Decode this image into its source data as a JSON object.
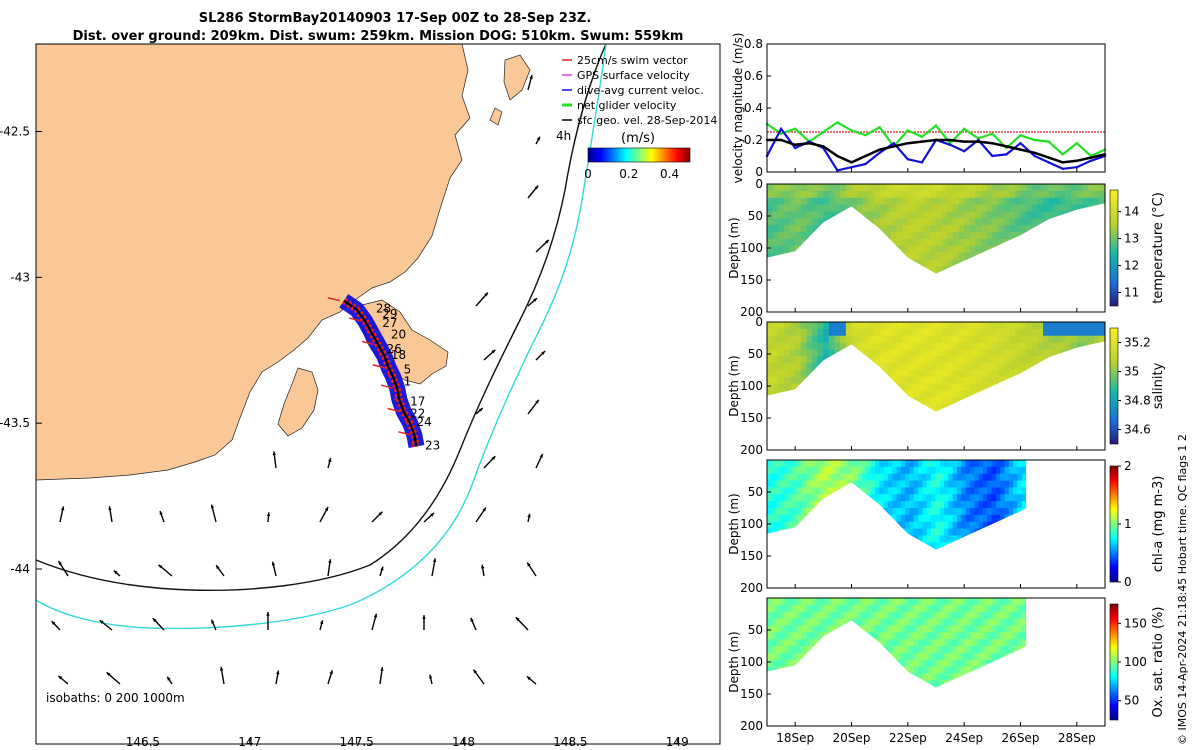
{
  "title": {
    "line1": "SL286 StormBay20140903 17-Sep 00Z to 28-Sep 23Z.",
    "line2": "Dist. over ground: 209km. Dist. swum: 259km. Mission DOG: 510km. Swum: 559km"
  },
  "copyright": "© IMOS 14-Apr-2024 21:18:45 Hobart time. QC flags 1  2",
  "colors": {
    "land": "#f9c896",
    "track": "#e8201c",
    "dive_avg": "#1010d8",
    "net": "#22e022",
    "isobath_200": "#111111",
    "isobath_1000": "#33d8d8",
    "wind_line": "#e04040"
  },
  "chart_data": [
    {
      "id": "map",
      "type": "scatter",
      "xlim": [
        146.0,
        149.2
      ],
      "ylim": [
        -44.6,
        -42.2
      ],
      "xticks": [
        "146.5",
        "147",
        "147.5",
        "148",
        "148.5",
        "149"
      ],
      "xtick_values": [
        146.5,
        147,
        147.5,
        148,
        148.5,
        149
      ],
      "yticks": [
        "-42.5",
        "-43",
        "-43.5",
        "-44"
      ],
      "ytick_values": [
        -42.5,
        -43,
        -43.5,
        -44
      ],
      "legend": {
        "placement": "top-right",
        "entries": [
          {
            "label": "25cm/s swim vector",
            "color": "#e8201c"
          },
          {
            "label": "GPS surface velocity",
            "color": "#e040e0"
          },
          {
            "label": "dive-avg current veloc.",
            "color": "#1010d8"
          },
          {
            "label": "net glider velocity",
            "color": "#22e022"
          },
          {
            "label": "sfc geo. vel. 28-Sep-2014",
            "color": "#000000"
          }
        ],
        "interval_label": "4h"
      },
      "colorbar": {
        "label": "(m/s)",
        "ticks": [
          "0",
          "0.2",
          "0.4"
        ],
        "tick_values": [
          0,
          0.2,
          0.4
        ],
        "range": [
          0,
          0.5
        ]
      },
      "isobath_label": "isobaths: 0   200   1000m",
      "day_labels": [
        {
          "text": "28",
          "lon": 147.59,
          "lat": -43.12
        },
        {
          "text": "29",
          "lon": 147.62,
          "lat": -43.14
        },
        {
          "text": "27",
          "lon": 147.62,
          "lat": -43.17
        },
        {
          "text": "20",
          "lon": 147.66,
          "lat": -43.21
        },
        {
          "text": "26",
          "lon": 147.64,
          "lat": -43.26
        },
        {
          "text": "18",
          "lon": 147.66,
          "lat": -43.28
        },
        {
          "text": "5",
          "lon": 147.72,
          "lat": -43.33
        },
        {
          "text": "1",
          "lon": 147.72,
          "lat": -43.37
        },
        {
          "text": "17",
          "lon": 147.75,
          "lat": -43.44
        },
        {
          "text": "22",
          "lon": 147.75,
          "lat": -43.48
        },
        {
          "text": "24",
          "lon": 147.78,
          "lat": -43.51
        },
        {
          "text": "23",
          "lon": 147.82,
          "lat": -43.59
        }
      ],
      "track": [
        [
          147.44,
          -43.08
        ],
        [
          147.5,
          -43.11
        ],
        [
          147.54,
          -43.15
        ],
        [
          147.57,
          -43.19
        ],
        [
          147.6,
          -43.23
        ],
        [
          147.63,
          -43.27
        ],
        [
          147.65,
          -43.31
        ],
        [
          147.67,
          -43.34
        ],
        [
          147.69,
          -43.38
        ],
        [
          147.7,
          -43.42
        ],
        [
          147.72,
          -43.46
        ],
        [
          147.75,
          -43.5
        ],
        [
          147.77,
          -43.54
        ],
        [
          147.78,
          -43.58
        ]
      ]
    },
    {
      "id": "velocity",
      "type": "line",
      "x_unit": "day of September 2014",
      "xlim": [
        17,
        29
      ],
      "ylim": [
        0,
        0.8
      ],
      "yticks": [
        "0",
        "0.2",
        "0.4",
        "0.6",
        "0.8"
      ],
      "ytick_values": [
        0,
        0.2,
        0.4,
        0.6,
        0.8
      ],
      "ylabel": "velocity magnitude (m/s)",
      "reference_line": 0.25,
      "series": [
        {
          "color": "#22e022",
          "x": [
            17,
            17.5,
            18,
            18.5,
            19,
            19.5,
            20,
            20.5,
            21,
            21.5,
            22,
            22.5,
            23,
            23.5,
            24,
            24.5,
            25,
            25.5,
            26,
            26.5,
            27,
            27.5,
            28,
            28.5,
            29
          ],
          "values": [
            0.3,
            0.24,
            0.27,
            0.19,
            0.25,
            0.31,
            0.26,
            0.23,
            0.28,
            0.16,
            0.26,
            0.22,
            0.29,
            0.18,
            0.27,
            0.21,
            0.24,
            0.15,
            0.23,
            0.2,
            0.19,
            0.11,
            0.18,
            0.1,
            0.14
          ]
        },
        {
          "color": "#1010d8",
          "x": [
            17,
            17.5,
            18,
            18.5,
            19,
            19.5,
            20,
            20.5,
            21,
            21.5,
            22,
            22.5,
            23,
            23.5,
            24,
            24.5,
            25,
            25.5,
            26,
            26.5,
            27,
            27.5,
            28,
            28.5,
            29
          ],
          "values": [
            0.1,
            0.27,
            0.15,
            0.19,
            0.15,
            0.01,
            0.03,
            0.05,
            0.12,
            0.18,
            0.08,
            0.06,
            0.2,
            0.17,
            0.13,
            0.2,
            0.1,
            0.11,
            0.18,
            0.1,
            0.06,
            0.02,
            0.03,
            0.07,
            0.1
          ]
        },
        {
          "color": "#000000",
          "x": [
            17,
            17.5,
            18,
            18.5,
            19,
            19.5,
            20,
            20.5,
            21,
            21.5,
            22,
            22.5,
            23,
            23.5,
            24,
            24.5,
            25,
            25.5,
            26,
            26.5,
            27,
            27.5,
            28,
            28.5,
            29
          ],
          "values": [
            0.2,
            0.2,
            0.17,
            0.18,
            0.16,
            0.1,
            0.06,
            0.1,
            0.14,
            0.16,
            0.18,
            0.19,
            0.2,
            0.2,
            0.19,
            0.19,
            0.18,
            0.16,
            0.14,
            0.12,
            0.09,
            0.06,
            0.07,
            0.09,
            0.11
          ]
        }
      ]
    },
    {
      "id": "temperature",
      "type": "heatmap",
      "x_unit": "day of September 2014",
      "xlim": [
        17,
        29
      ],
      "ylim": [
        200,
        0
      ],
      "yticks": [
        "0",
        "50",
        "100",
        "150",
        "200"
      ],
      "ytick_values": [
        0,
        50,
        100,
        150,
        200
      ],
      "ylabel": "Depth (m)",
      "colorbar": {
        "label": "temperature (°C)",
        "ticks": [
          "11",
          "12",
          "13",
          "14"
        ],
        "tick_values": [
          11,
          12,
          13,
          14
        ],
        "range": [
          10.5,
          14.8
        ]
      },
      "data_end": 29,
      "bottom_depth": {
        "x": [
          17,
          18,
          19,
          20,
          21,
          22,
          23,
          24,
          25,
          26,
          27,
          28,
          29
        ],
        "depth": [
          115,
          105,
          60,
          35,
          70,
          115,
          140,
          120,
          100,
          80,
          55,
          40,
          30
        ]
      },
      "field": {
        "x": [
          17,
          18,
          19,
          20,
          21,
          22,
          23,
          24,
          25,
          26,
          27,
          28,
          29
        ],
        "values": [
          12.8,
          13.0,
          12.7,
          13.1,
          13.4,
          13.6,
          13.5,
          13.3,
          13.1,
          12.8,
          12.6,
          12.7,
          12.9
        ]
      }
    },
    {
      "id": "salinity",
      "type": "heatmap",
      "x_unit": "day of September 2014",
      "xlim": [
        17,
        29
      ],
      "ylim": [
        200,
        0
      ],
      "yticks": [
        "0",
        "50",
        "100",
        "150",
        "200"
      ],
      "ytick_values": [
        0,
        50,
        100,
        150,
        200
      ],
      "ylabel": "Depth (m)",
      "colorbar": {
        "label": "salinity",
        "ticks": [
          "34.6",
          "34.8",
          "35",
          "35.2"
        ],
        "tick_values": [
          34.6,
          34.8,
          35,
          35.2
        ],
        "range": [
          34.5,
          35.3
        ]
      },
      "data_end": 29,
      "bottom_depth": {
        "x": [
          17,
          18,
          19,
          20,
          21,
          22,
          23,
          24,
          25,
          26,
          27,
          28,
          29
        ],
        "depth": [
          115,
          105,
          60,
          35,
          70,
          115,
          140,
          120,
          100,
          80,
          55,
          40,
          30
        ]
      },
      "field": {
        "x": [
          17,
          18,
          19,
          20,
          21,
          22,
          23,
          24,
          25,
          26,
          27,
          28,
          29
        ],
        "values": [
          35.1,
          35.05,
          34.85,
          35.15,
          35.2,
          35.2,
          35.2,
          35.18,
          35.15,
          35.1,
          35.05,
          35.0,
          35.1
        ]
      }
    },
    {
      "id": "chl",
      "type": "heatmap",
      "x_unit": "day of September 2014",
      "xlim": [
        17,
        29
      ],
      "ylim": [
        200,
        0
      ],
      "yticks": [
        "50",
        "100",
        "150",
        "200"
      ],
      "ytick_values": [
        50,
        100,
        150,
        200
      ],
      "ylabel": "Depth (m)",
      "colorbar": {
        "label": "chl-a (mg m-3)",
        "ticks": [
          "0",
          "1",
          "2"
        ],
        "tick_values": [
          0,
          1,
          2
        ],
        "range": [
          0,
          2
        ]
      },
      "data_end": 26.2,
      "bottom_depth": {
        "x": [
          17,
          18,
          19,
          20,
          21,
          22,
          23,
          24,
          25,
          26,
          26.2
        ],
        "depth": [
          115,
          105,
          60,
          35,
          70,
          115,
          140,
          120,
          100,
          80,
          75
        ]
      },
      "field": {
        "x": [
          17,
          18,
          19,
          20,
          21,
          22,
          23,
          24,
          25,
          26,
          26.2
        ],
        "values": [
          0.8,
          0.9,
          1.1,
          1.0,
          0.7,
          0.6,
          0.8,
          0.5,
          0.4,
          0.7,
          0.7
        ]
      }
    },
    {
      "id": "oxygen",
      "type": "heatmap",
      "x_unit": "day of September 2014",
      "xlim": [
        17,
        29
      ],
      "ylim": [
        200,
        0
      ],
      "yticks": [
        "50",
        "100",
        "150",
        "200"
      ],
      "ytick_values": [
        50,
        100,
        150,
        200
      ],
      "ylabel": "Ox. sat. ratio (%)",
      "colorbar": {
        "label": "Ox. sat. ratio (%)",
        "ticks": [
          "50",
          "100",
          "150"
        ],
        "tick_values": [
          50,
          100,
          150
        ],
        "range": [
          25,
          175
        ]
      },
      "xticks": [
        "18Sep",
        "20Sep",
        "22Sep",
        "24Sep",
        "26Sep",
        "28Sep"
      ],
      "xtick_values": [
        18,
        20,
        22,
        24,
        26,
        28
      ],
      "data_end": 26.2,
      "bottom_depth": {
        "x": [
          17,
          18,
          19,
          20,
          21,
          22,
          23,
          24,
          25,
          26,
          26.2
        ],
        "depth": [
          115,
          105,
          60,
          35,
          70,
          115,
          140,
          120,
          100,
          80,
          75
        ]
      },
      "field": {
        "x": [
          17,
          26.2
        ],
        "values": [
          98,
          98
        ]
      }
    }
  ]
}
